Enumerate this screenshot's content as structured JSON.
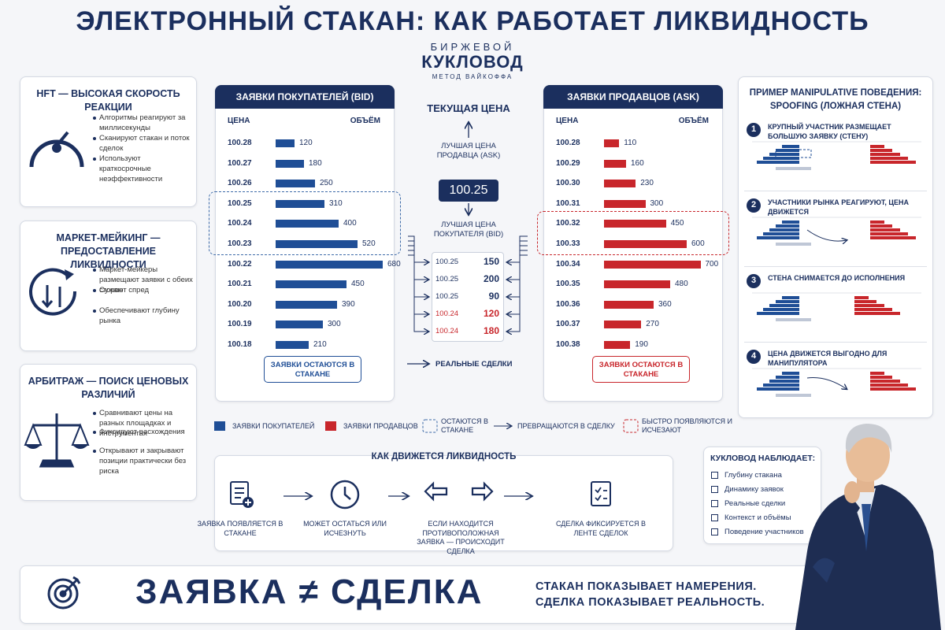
{
  "header": {
    "title": "ЭЛЕКТРОННЫЙ СТАКАН: КАК РАБОТАЕТ ЛИКВИДНОСТЬ",
    "logo_top": "БИРЖЕВОЙ",
    "logo_main": "КУКЛОВОД",
    "logo_sub": "МЕТОД ВАЙКОФФА"
  },
  "left_panels": [
    {
      "title": "HFT — ВЫСОКАЯ СКОРОСТЬ РЕАКЦИИ",
      "items": [
        "Алгоритмы реагируют за миллисекунды",
        "Сканируют стакан и поток сделок",
        "Используют краткосрочные неэффективности"
      ]
    },
    {
      "title": "МАРКЕТ-МЕЙКИНГ — ПРЕДОСТАВЛЕНИЕ ЛИКВИДНОСТИ",
      "items": [
        "Маркет-мейкеры размещают заявки с обеих сторон",
        "Сужают спред",
        "Обеспечивают глубину рынка"
      ]
    },
    {
      "title": "АРБИТРАЖ — ПОИСК ЦЕНОВЫХ РАЗЛИЧИЙ",
      "items": [
        "Сравнивают цены на разных площадках и инструментах",
        "Фиксируют расхождения",
        "Открывают и закрывают позиции практически без риска"
      ]
    }
  ],
  "bid": {
    "title": "ЗАЯВКИ ПОКУПАТЕЛЕЙ (BID)",
    "price_header": "ЦЕНА",
    "volume_header": "ОБЪЁМ",
    "prices": [
      "100.28",
      "100.27",
      "100.26",
      "100.25",
      "100.24",
      "100.23",
      "100.22",
      "100.21",
      "100.20",
      "100.19",
      "100.18"
    ],
    "volumes": [
      120,
      180,
      250,
      310,
      400,
      520,
      680,
      450,
      390,
      300,
      210
    ],
    "color": "#1f4e96",
    "note": "ЗАЯВКИ ОСТАЮТСЯ В СТАКАНЕ"
  },
  "ask": {
    "title": "ЗАЯВКИ ПРОДАВЦОВ (ASK)",
    "price_header": "ЦЕНА",
    "volume_header": "ОБЪЁМ",
    "prices": [
      "100.28",
      "100.29",
      "100.30",
      "100.31",
      "100.32",
      "100.33",
      "100.34",
      "100.35",
      "100.36",
      "100.37",
      "100.38"
    ],
    "volumes": [
      110,
      160,
      230,
      300,
      450,
      600,
      700,
      480,
      360,
      270,
      190
    ],
    "color": "#c8262b",
    "note": "ЗАЯВКИ ОСТАЮТСЯ В СТАКАНЕ"
  },
  "center": {
    "title": "ТЕКУЩАЯ ЦЕНА",
    "best_ask_label": "ЛУЧШАЯ ЦЕНА ПРОДАВЦА (ASK)",
    "price": "100.25",
    "best_bid_label": "ЛУЧШАЯ ЦЕНА ПОКУПАТЕЛЯ (BID)",
    "trades": {
      "prices": [
        "100.25",
        "100.25",
        "100.25",
        "100.24",
        "100.24"
      ],
      "volumes": [
        150,
        200,
        90,
        120,
        180
      ],
      "colors": [
        "#1b2f5e",
        "#1b2f5e",
        "#1b2f5e",
        "#c8262b",
        "#c8262b"
      ]
    },
    "trades_label": "РЕАЛЬНЫЕ СДЕЛКИ"
  },
  "legend": [
    "ЗАЯВКИ ПОКУПАТЕЛЕЙ",
    "ЗАЯВКИ ПРОДАВЦОВ",
    "ОСТАЮТСЯ В СТАКАНЕ",
    "ПРЕВРАЩАЮТСЯ В СДЕЛКУ",
    "БЫСТРО ПОЯВЛЯЮТСЯ И ИСЧЕЗАЮТ"
  ],
  "flow": {
    "title": "КАК ДВИЖЕТСЯ ЛИКВИДНОСТЬ",
    "steps": [
      "ЗАЯВКА ПОЯВЛЯЕТСЯ В СТАКАНЕ",
      "МОЖЕТ ОСТАТЬСЯ ИЛИ ИСЧЕЗНУТЬ",
      "ЕСЛИ НАХОДИТСЯ ПРОТИВОПОЛОЖНАЯ ЗАЯВКА — ПРОИСХОДИТ СДЕЛКА",
      "СДЕЛКА ФИКСИРУЕТСЯ В ЛЕНТЕ СДЕЛОК"
    ]
  },
  "spoofing": {
    "title": "ПРИМЕР MANIPULATIVE ПОВЕДЕНИЯ: SPOOFING (ЛОЖНАЯ СТЕНА)",
    "steps": [
      {
        "number": 1,
        "text": "КРУПНЫЙ УЧАСТНИК РАЗМЕЩАЕТ БОЛЬШУЮ ЗАЯВКУ (СТЕНУ)"
      },
      {
        "number": 2,
        "text": "УЧАСТНИКИ РЫНКА РЕАГИРУЮТ, ЦЕНА ДВИЖЕТСЯ"
      },
      {
        "number": 3,
        "text": "СТЕНА СНИМАЕТСЯ ДО ИСПОЛНЕНИЯ"
      },
      {
        "number": 4,
        "text": "ЦЕНА ДВИЖЕТСЯ ВЫГОДНО ДЛЯ МАНИПУЛЯТОРА"
      }
    ]
  },
  "observer": {
    "title": "КУКЛОВОД НАБЛЮДАЕТ:",
    "items": [
      "Глубину стакана",
      "Динамику заявок",
      "Реальные сделки",
      "Контекст и объёмы",
      "Поведение участников"
    ]
  },
  "footer": {
    "main": "ЗАЯВКА ≠ СДЕЛКА",
    "line1": "СТАКАН ПОКАЗЫВАЕТ НАМЕРЕНИЯ.",
    "line2": "СДЕЛКА ПОКАЗЫВАЕТ РЕАЛЬНОСТЬ."
  }
}
